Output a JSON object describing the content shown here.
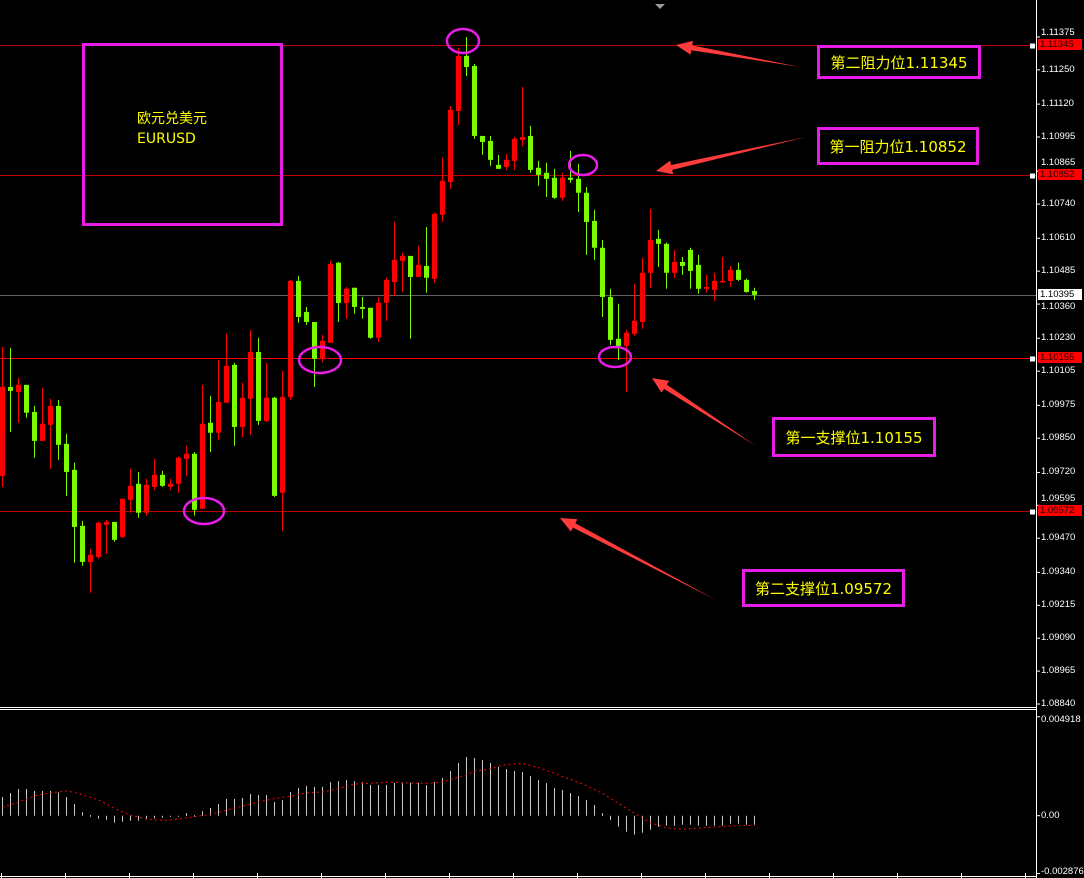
{
  "chart_data": [
    {
      "type": "candlestick",
      "title": "",
      "symbol_box": {
        "name_cn": "欧元兑美元",
        "symbol": "EURUSD"
      },
      "candle_colors": {
        "up": "#ff0000",
        "down": "#7cfc00"
      },
      "ylim": [
        1.0884,
        1.11375
      ],
      "y_ticks": [
        "1.11375",
        "1.11250",
        "1.11120",
        "1.10995",
        "1.10865",
        "1.10740",
        "1.10610",
        "1.10485",
        "1.10360",
        "1.10230",
        "1.10105",
        "1.09975",
        "1.09850",
        "1.09720",
        "1.09595",
        "1.09470",
        "1.09340",
        "1.09215",
        "1.09090",
        "1.08965",
        "1.08840"
      ],
      "grid": false,
      "ohlc": [
        [
          1.09707,
          1.10197,
          1.09665,
          1.10045
        ],
        [
          1.10045,
          1.10194,
          1.09874,
          1.1003
        ],
        [
          1.10026,
          1.1008,
          1.09909,
          1.10053
        ],
        [
          1.10053,
          1.10053,
          1.09928,
          1.09947
        ],
        [
          1.0995,
          1.09973,
          1.09776,
          1.0984
        ],
        [
          1.0984,
          1.10042,
          1.0984,
          1.09905
        ],
        [
          1.09901,
          1.1,
          1.09734,
          1.09973
        ],
        [
          1.09973,
          1.09996,
          1.09768,
          1.09825
        ],
        [
          1.09829,
          1.09867,
          1.09631,
          1.09722
        ],
        [
          1.0973,
          1.09757,
          1.09377,
          1.09513
        ],
        [
          1.09517,
          1.09536,
          1.09365,
          1.0938
        ],
        [
          1.0938,
          1.0943,
          1.09263,
          1.09407
        ],
        [
          1.09399,
          1.09532,
          1.09392,
          1.09529
        ],
        [
          1.09521,
          1.0954,
          1.09411,
          1.09532
        ],
        [
          1.09532,
          1.09532,
          1.09456,
          1.09464
        ],
        [
          1.09475,
          1.0962,
          1.09472,
          1.0962
        ],
        [
          1.09616,
          1.09734,
          1.09567,
          1.09669
        ],
        [
          1.09677,
          1.09722,
          1.09548,
          1.09567
        ],
        [
          1.09567,
          1.09696,
          1.09556,
          1.09673
        ],
        [
          1.09665,
          1.09772,
          1.09654,
          1.09711
        ],
        [
          1.09711,
          1.09726,
          1.09665,
          1.09669
        ],
        [
          1.09665,
          1.09696,
          1.09654,
          1.09677
        ],
        [
          1.09677,
          1.0978,
          1.09643,
          1.09776
        ],
        [
          1.09772,
          1.09821,
          1.09707,
          1.09791
        ],
        [
          1.09791,
          1.09798,
          1.09556,
          1.09578
        ],
        [
          1.09582,
          1.10053,
          1.09582,
          1.09905
        ],
        [
          1.09909,
          1.10011,
          1.09798,
          1.09871
        ],
        [
          1.09871,
          1.10148,
          1.09844,
          1.09988
        ],
        [
          1.09985,
          1.10247,
          1.09985,
          1.10125
        ],
        [
          1.10129,
          1.10137,
          1.09821,
          1.09893
        ],
        [
          1.09893,
          1.10061,
          1.09852,
          1.10004
        ],
        [
          1.1,
          1.10262,
          1.09863,
          1.10178
        ],
        [
          1.10178,
          1.10232,
          1.09901,
          1.09916
        ],
        [
          1.09916,
          1.10137,
          1.09912,
          1.10004
        ],
        [
          1.10004,
          1.10007,
          1.09627,
          1.09631
        ],
        [
          1.09643,
          1.10106,
          1.09498,
          1.10007
        ],
        [
          1.10007,
          1.10452,
          1.09996,
          1.10448
        ],
        [
          1.10448,
          1.10467,
          1.10289,
          1.10311
        ],
        [
          1.1033,
          1.10349,
          1.10281,
          1.10292
        ],
        [
          1.10292,
          1.10292,
          1.10045,
          1.10152
        ],
        [
          1.10152,
          1.10243,
          1.1014,
          1.1022
        ],
        [
          1.10213,
          1.10524,
          1.10213,
          1.10513
        ],
        [
          1.10517,
          1.1052,
          1.10292,
          1.10364
        ],
        [
          1.10364,
          1.10425,
          1.10304,
          1.10418
        ],
        [
          1.10422,
          1.10422,
          1.10323,
          1.10349
        ],
        [
          1.10349,
          1.10387,
          1.10304,
          1.10342
        ],
        [
          1.10346,
          1.10346,
          1.10228,
          1.10232
        ],
        [
          1.10232,
          1.10387,
          1.10216,
          1.10365
        ],
        [
          1.10365,
          1.1046,
          1.10296,
          1.10452
        ],
        [
          1.10444,
          1.10672,
          1.10391,
          1.10528
        ],
        [
          1.10524,
          1.10555,
          1.10406,
          1.10543
        ],
        [
          1.10543,
          1.10543,
          1.10228,
          1.10463
        ],
        [
          1.10463,
          1.10581,
          1.10463,
          1.10509
        ],
        [
          1.10505,
          1.10653,
          1.10403,
          1.1046
        ],
        [
          1.10456,
          1.10707,
          1.10441,
          1.10703
        ],
        [
          1.10699,
          1.10916,
          1.10672,
          1.10828
        ],
        [
          1.10824,
          1.11113,
          1.10798,
          1.11098
        ],
        [
          1.11094,
          1.11334,
          1.11041,
          1.11303
        ],
        [
          1.11303,
          1.11375,
          1.11227,
          1.11261
        ],
        [
          1.11265,
          1.11273,
          1.10988,
          1.10999
        ],
        [
          1.10999,
          1.10999,
          1.10927,
          1.10976
        ],
        [
          1.1098,
          1.10999,
          1.10885,
          1.10908
        ],
        [
          1.10889,
          1.10927,
          1.10874,
          1.10874
        ],
        [
          1.10881,
          1.10931,
          1.1087,
          1.10908
        ],
        [
          1.10904,
          1.10995,
          1.1087,
          1.10988
        ],
        [
          1.10984,
          1.11185,
          1.10961,
          1.10995
        ],
        [
          1.10999,
          1.11037,
          1.10859,
          1.1087
        ],
        [
          1.10878,
          1.10904,
          1.10809,
          1.10851
        ],
        [
          1.10859,
          1.10897,
          1.10767,
          1.10836
        ],
        [
          1.1084,
          1.10874,
          1.1076,
          1.10764
        ],
        [
          1.10764,
          1.10859,
          1.10752,
          1.1084
        ],
        [
          1.1084,
          1.10942,
          1.10821,
          1.10832
        ],
        [
          1.10836,
          1.10893,
          1.1071,
          1.10783
        ],
        [
          1.10783,
          1.10805,
          1.10547,
          1.10672
        ],
        [
          1.10676,
          1.10718,
          1.10528,
          1.10574
        ],
        [
          1.10574,
          1.10604,
          1.10311,
          1.10387
        ],
        [
          1.10387,
          1.10418,
          1.10205,
          1.10224
        ],
        [
          1.10228,
          1.10361,
          1.10148,
          1.10201
        ],
        [
          1.10201,
          1.10262,
          1.10026,
          1.10251
        ],
        [
          1.10247,
          1.10437,
          1.10239,
          1.10296
        ],
        [
          1.10292,
          1.10536,
          1.10266,
          1.10479
        ],
        [
          1.10479,
          1.10722,
          1.10422,
          1.10604
        ],
        [
          1.10608,
          1.10642,
          1.10501,
          1.10589
        ],
        [
          1.10589,
          1.10593,
          1.10418,
          1.10479
        ],
        [
          1.10479,
          1.10566,
          1.1046,
          1.1052
        ],
        [
          1.1052,
          1.10539,
          1.10471,
          1.10505
        ],
        [
          1.10566,
          1.10574,
          1.10418,
          1.10486
        ],
        [
          1.10509,
          1.10547,
          1.10399,
          1.10418
        ],
        [
          1.10418,
          1.10471,
          1.10403,
          1.10425
        ],
        [
          1.10414,
          1.10479,
          1.10372,
          1.10448
        ],
        [
          1.10444,
          1.10539,
          1.10441,
          1.10448
        ],
        [
          1.10448,
          1.10505,
          1.10425,
          1.1049
        ],
        [
          1.1049,
          1.10517,
          1.10448,
          1.10452
        ],
        [
          1.10452,
          1.10456,
          1.10403,
          1.10406
        ],
        [
          1.1041,
          1.10422,
          1.10376,
          1.10395
        ]
      ],
      "levels": [
        {
          "price": "1.11345",
          "color": "#ff0000",
          "label_bg": "#ff0000",
          "label_color": "#200000"
        },
        {
          "price": "1.10852",
          "color": "#ff0000",
          "label_bg": "#ff0000",
          "label_color": "#200000"
        },
        {
          "price": "1.10395",
          "color": "#808080",
          "label_bg": "#ffffff",
          "label_color": "#000000"
        },
        {
          "price": "1.10155",
          "color": "#ff0000",
          "label_bg": "#ff0000",
          "label_color": "#200000"
        },
        {
          "price": "1.09572",
          "color": "#ff0000",
          "label_bg": "#ff0000",
          "label_color": "#200000"
        }
      ],
      "annotations": [
        {
          "text": "第二阻力位1.11345",
          "price": 1.11345
        },
        {
          "text": "第一阻力位1.10852",
          "price": 1.10852
        },
        {
          "text": "第一支撑位1.10155",
          "price": 1.10155
        },
        {
          "text": "第二支撑位1.09572",
          "price": 1.09572
        }
      ],
      "highlight_color": "#e81ee8",
      "annotation_text_color": "#ffff00",
      "arrow_color": "#ff3b3b"
    },
    {
      "type": "bar",
      "indicator": "MACD",
      "ylim": [
        -0.002876,
        0.004918
      ],
      "y_ticks": [
        "0.004918",
        "0.00",
        "-0.002876"
      ],
      "histogram_color": "#c8c8c8",
      "signal_color": "#ff0000",
      "histogram": [
        0.00093,
        0.00113,
        0.00133,
        0.00133,
        0.00123,
        0.00123,
        0.00123,
        0.00116,
        0.00093,
        0.00058,
        0.00018,
        3e-05,
        -0.00015,
        -0.0002,
        -0.00035,
        -0.0003,
        -0.00025,
        -0.00025,
        -0.00018,
        -0.00013,
        -0.0001,
        -5e-05,
        -5e-05,
        0.00013,
        2e-05,
        0.00023,
        0.00038,
        0.00058,
        0.00083,
        0.00083,
        0.00088,
        0.00108,
        0.00103,
        0.00103,
        0.00068,
        0.00078,
        0.00118,
        0.00138,
        0.00148,
        0.00143,
        0.00143,
        0.00167,
        0.00172,
        0.00177,
        0.00172,
        0.00167,
        0.00153,
        0.00153,
        0.00153,
        0.00163,
        0.00162,
        0.00163,
        0.00163,
        0.00152,
        0.00167,
        0.00187,
        0.00222,
        0.00262,
        0.00292,
        0.00287,
        0.00277,
        0.00262,
        0.00242,
        0.00232,
        0.00222,
        0.00217,
        0.00197,
        0.00177,
        0.00162,
        0.00138,
        0.00128,
        0.00113,
        0.00098,
        0.00078,
        0.00053,
        0.00013,
        -0.00022,
        -0.00055,
        -0.0008,
        -0.00094,
        -0.00085,
        -0.0007,
        -0.00055,
        -0.0005,
        -0.0005,
        -0.00045,
        -0.00045,
        -0.0005,
        -0.0005,
        -0.0005,
        -0.0005,
        -0.0004,
        -0.0004,
        -0.00045,
        -0.00045
      ],
      "signal": [
        0.00041,
        0.00055,
        0.00068,
        0.00083,
        0.00098,
        0.00106,
        0.00113,
        0.00118,
        0.00123,
        0.00115,
        0.00104,
        0.00091,
        0.00078,
        0.00057,
        0.00036,
        0.00019,
        3e-05,
        -7e-05,
        -0.00017,
        -0.0002,
        -0.00023,
        -0.00021,
        -0.00017,
        -0.00011,
        -5e-05,
        1e-05,
        7e-05,
        0.00017,
        0.00028,
        0.00038,
        0.00048,
        0.00058,
        0.00068,
        0.00077,
        0.00085,
        0.00091,
        0.00096,
        0.00105,
        0.00113,
        0.00116,
        0.00118,
        0.00126,
        0.00134,
        0.00146,
        0.00157,
        0.0016,
        0.00162,
        0.00164,
        0.00166,
        0.00166,
        0.00164,
        0.00163,
        0.00162,
        0.00161,
        0.00164,
        0.00169,
        0.0018,
        0.00191,
        0.00205,
        0.00219,
        0.00227,
        0.00235,
        0.00245,
        0.00255,
        0.00258,
        0.0026,
        0.0025,
        0.00239,
        0.00225,
        0.0021,
        0.00195,
        0.0018,
        0.00165,
        0.00149,
        0.0013,
        0.00111,
        0.00086,
        0.00061,
        0.00037,
        0.00012,
        -0.00012,
        -0.00035,
        -0.00048,
        -0.0006,
        -0.00064,
        -0.00068,
        -0.00065,
        -0.00061,
        -0.00059,
        -0.00056,
        -0.00054,
        -0.00051,
        -0.0005,
        -0.00048,
        -0.00048
      ]
    }
  ]
}
